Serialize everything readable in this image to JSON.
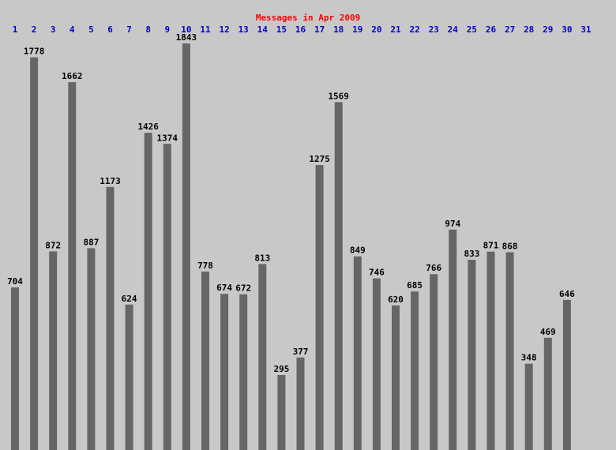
{
  "chart_data": {
    "type": "bar",
    "title": "Messages in Apr 2009",
    "categories": [
      "1",
      "2",
      "3",
      "4",
      "5",
      "6",
      "7",
      "8",
      "9",
      "10",
      "11",
      "12",
      "13",
      "14",
      "15",
      "16",
      "17",
      "18",
      "19",
      "20",
      "21",
      "22",
      "23",
      "24",
      "25",
      "26",
      "27",
      "28",
      "29",
      "30",
      "31"
    ],
    "values": [
      704,
      1778,
      872,
      1662,
      887,
      1173,
      624,
      1426,
      1374,
      1843,
      778,
      674,
      672,
      813,
      295,
      377,
      1275,
      1569,
      849,
      746,
      620,
      685,
      766,
      974,
      833,
      871,
      868,
      348,
      469,
      646,
      null
    ],
    "color": "#666666",
    "ylim": [
      -55,
      1843
    ]
  }
}
